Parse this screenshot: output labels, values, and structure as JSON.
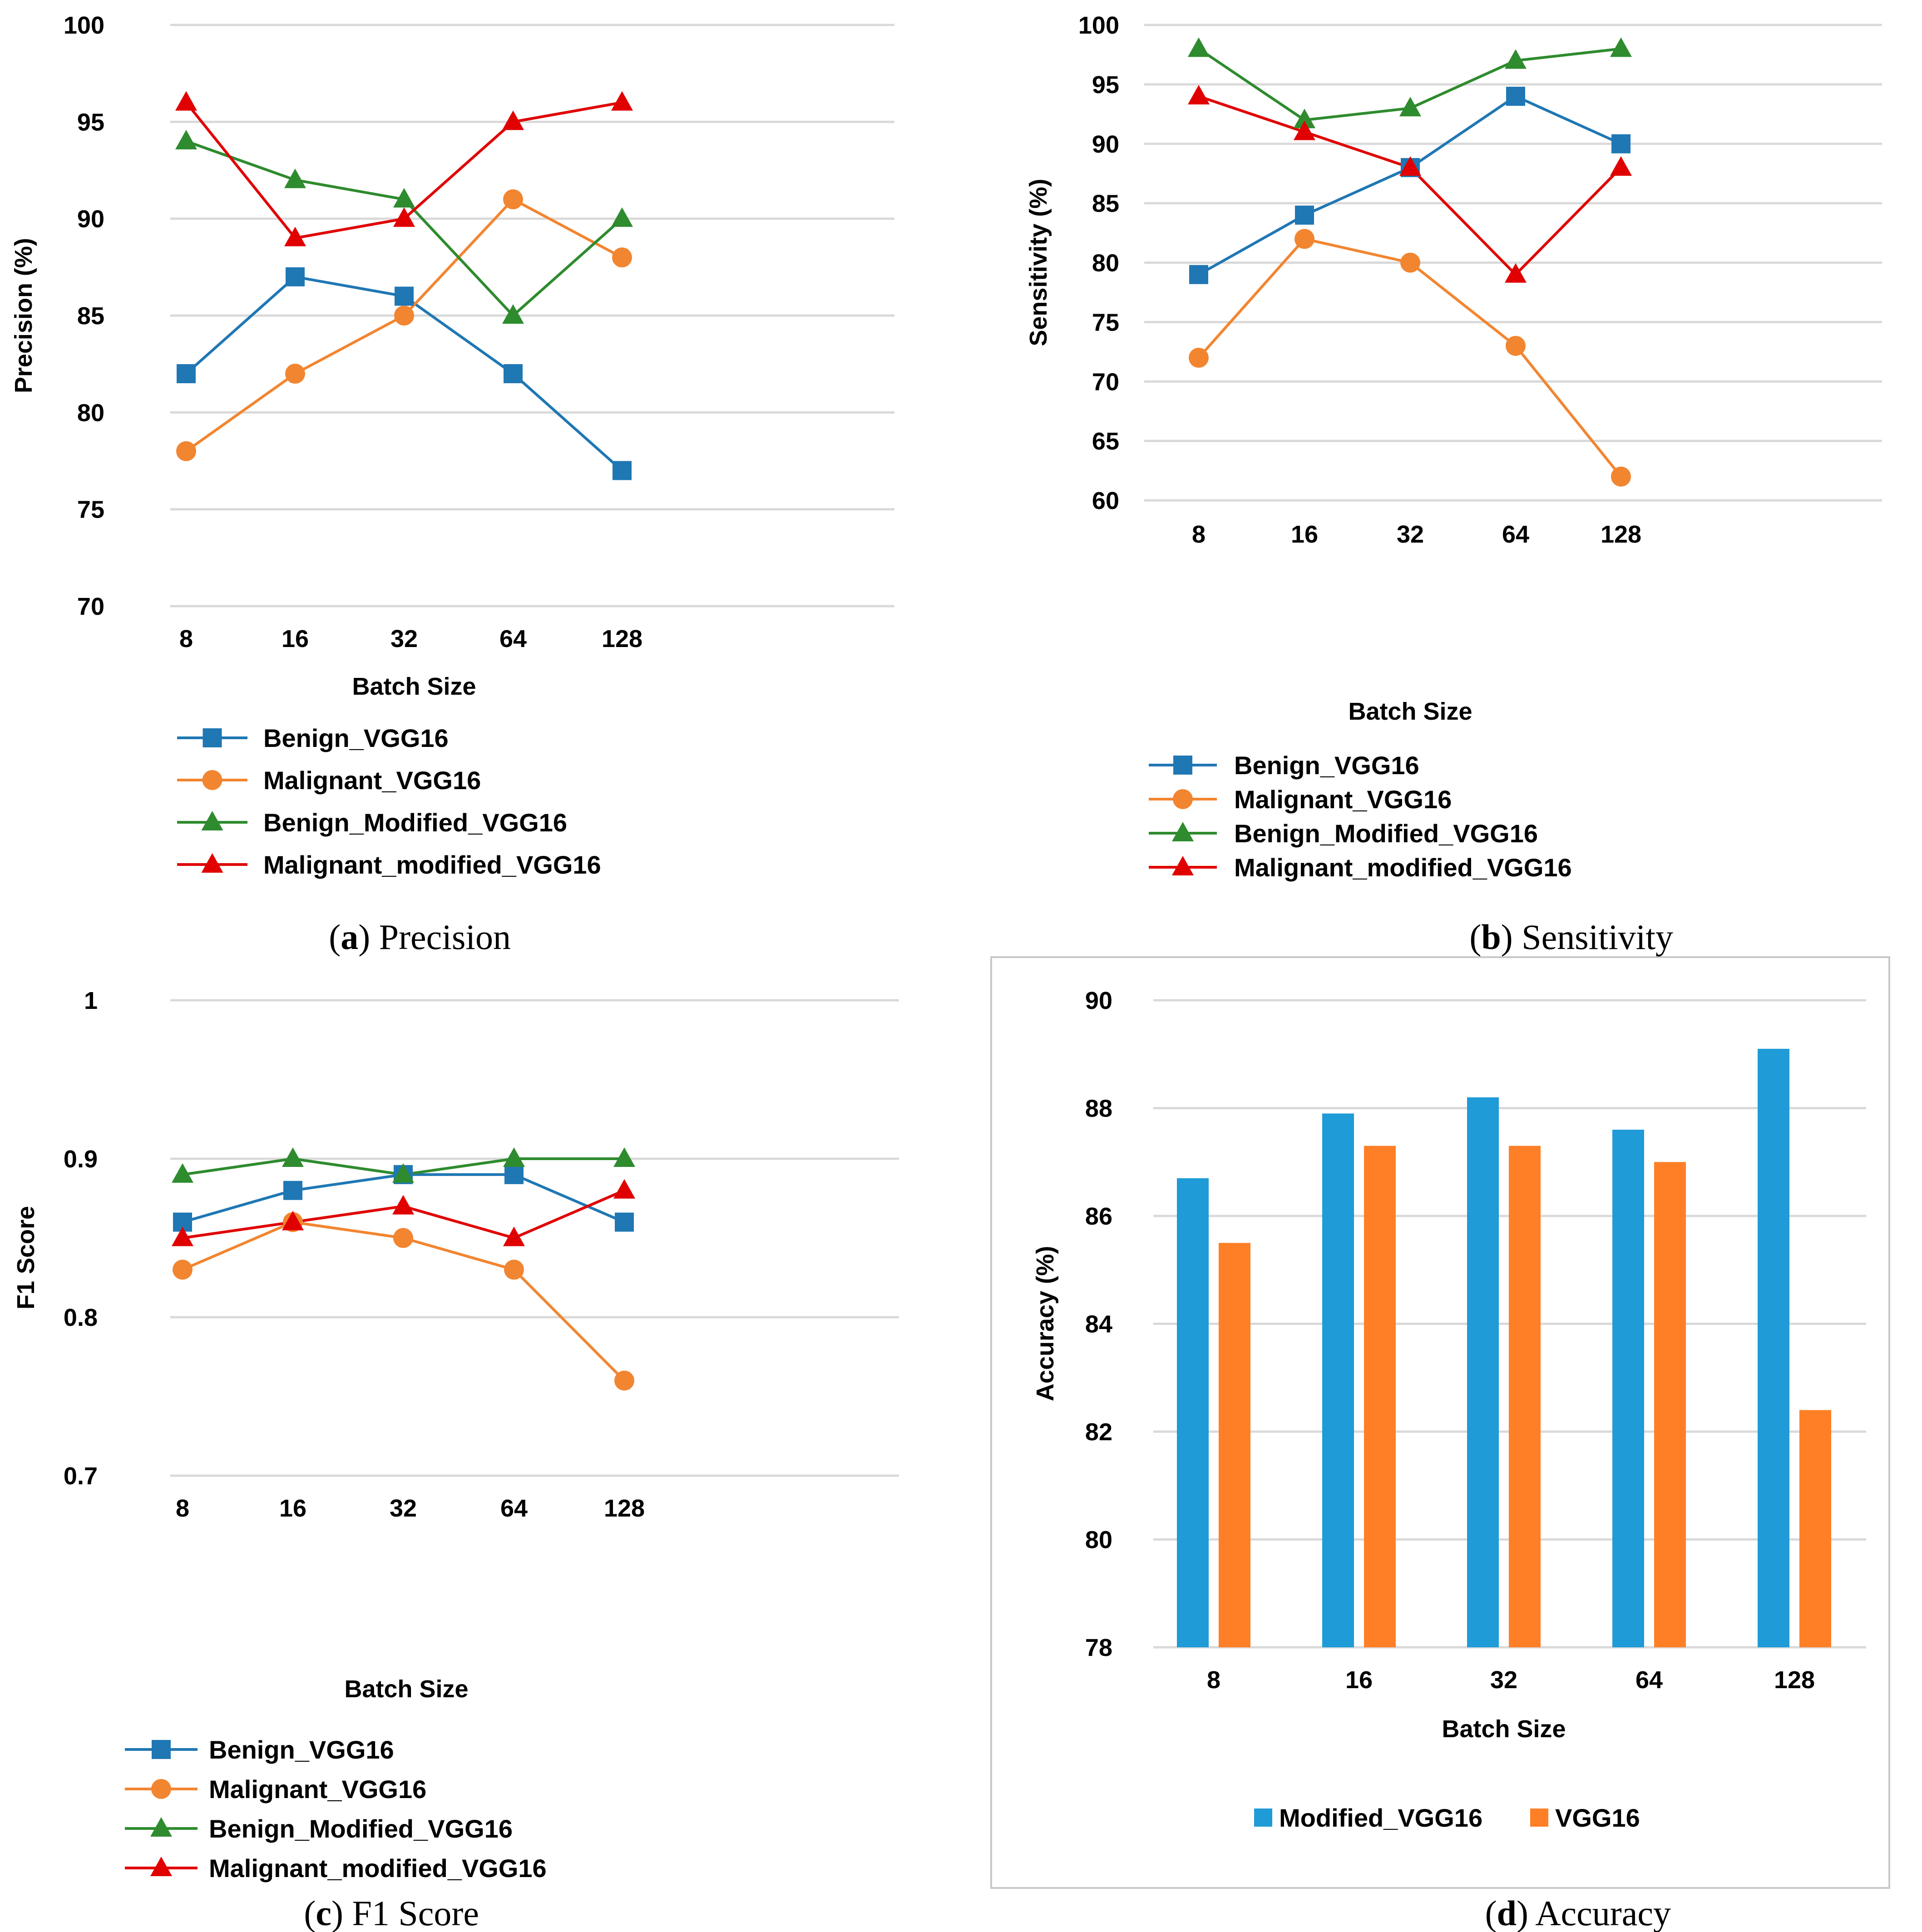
{
  "figure": {
    "colors": {
      "benign_vgg16": "#1f77b4",
      "malignant_vgg16": "#f28530",
      "benign_modified": "#2e8b2e",
      "malignant_modified": "#e00000",
      "bar_modified": "#1f9bd7",
      "bar_vgg16": "#ff7f27",
      "grid": "#d9d9d9"
    }
  },
  "chart_data": [
    {
      "id": "a",
      "type": "line",
      "caption_letter": "a",
      "caption_text": "Precision",
      "xlabel": "Batch Size",
      "ylabel": "Precision (%)",
      "categories": [
        "8",
        "16",
        "32",
        "64",
        "128"
      ],
      "ylim": [
        70,
        100
      ],
      "yticks": [
        "70",
        "75",
        "80",
        "85",
        "90",
        "95",
        "100"
      ],
      "series": [
        {
          "name": "Benign_VGG16",
          "marker": "square",
          "color": "#1f77b4",
          "values": [
            82,
            87,
            86,
            82,
            77
          ]
        },
        {
          "name": "Malignant_VGG16",
          "marker": "circle",
          "color": "#f28530",
          "values": [
            78,
            82,
            85,
            91,
            88
          ]
        },
        {
          "name": "Benign_Modified_VGG16",
          "marker": "triangle",
          "color": "#2e8b2e",
          "values": [
            94,
            92,
            91,
            85,
            90
          ]
        },
        {
          "name": "Malignant_modified_VGG16",
          "marker": "triangle",
          "color": "#e00000",
          "values": [
            96,
            89,
            90,
            95,
            96
          ]
        }
      ]
    },
    {
      "id": "b",
      "type": "line",
      "caption_letter": "b",
      "caption_text": "Sensitivity",
      "xlabel": "Batch Size",
      "ylabel": "Sensitivity (%)",
      "categories": [
        "8",
        "16",
        "32",
        "64",
        "128"
      ],
      "ylim": [
        60,
        100
      ],
      "yticks": [
        "60",
        "65",
        "70",
        "75",
        "80",
        "85",
        "90",
        "95",
        "100"
      ],
      "series": [
        {
          "name": "Benign_VGG16",
          "marker": "square",
          "color": "#1f77b4",
          "values": [
            79,
            84,
            88,
            94,
            90
          ]
        },
        {
          "name": "Malignant_VGG16",
          "marker": "circle",
          "color": "#f28530",
          "values": [
            72,
            82,
            80,
            73,
            62
          ]
        },
        {
          "name": "Benign_Modified_VGG16",
          "marker": "triangle",
          "color": "#2e8b2e",
          "values": [
            98,
            92,
            93,
            97,
            98
          ]
        },
        {
          "name": "Malignant_modified_VGG16",
          "marker": "triangle",
          "color": "#e00000",
          "values": [
            94,
            91,
            88,
            79,
            88
          ]
        }
      ]
    },
    {
      "id": "c",
      "type": "line",
      "caption_letter": "c",
      "caption_text": "F1 Score",
      "xlabel": "Batch Size",
      "ylabel": "F1 Score",
      "categories": [
        "8",
        "16",
        "32",
        "64",
        "128"
      ],
      "ylim": [
        0.7,
        1.0
      ],
      "yticks": [
        "0.7",
        "0.8",
        "0.9",
        "1"
      ],
      "series": [
        {
          "name": "Benign_VGG16",
          "marker": "square",
          "color": "#1f77b4",
          "values": [
            0.86,
            0.88,
            0.89,
            0.89,
            0.86
          ]
        },
        {
          "name": "Malignant_VGG16",
          "marker": "circle",
          "color": "#f28530",
          "values": [
            0.83,
            0.86,
            0.85,
            0.83,
            0.76
          ]
        },
        {
          "name": "Benign_Modified_VGG16",
          "marker": "triangle",
          "color": "#2e8b2e",
          "values": [
            0.89,
            0.9,
            0.89,
            0.9,
            0.9
          ]
        },
        {
          "name": "Malignant_modified_VGG16",
          "marker": "triangle",
          "color": "#e00000",
          "values": [
            0.85,
            0.86,
            0.87,
            0.85,
            0.88
          ]
        }
      ]
    },
    {
      "id": "d",
      "type": "bar",
      "caption_letter": "d",
      "caption_text": "Accuracy",
      "xlabel": "Batch Size",
      "ylabel": "Accuracy (%)",
      "categories": [
        "8",
        "16",
        "32",
        "64",
        "128"
      ],
      "ylim": [
        78,
        90
      ],
      "yticks": [
        "78",
        "80",
        "82",
        "84",
        "86",
        "88",
        "90"
      ],
      "series": [
        {
          "name": "Modified_VGG16",
          "color": "#1f9bd7",
          "values": [
            86.7,
            87.9,
            88.2,
            87.6,
            89.1
          ]
        },
        {
          "name": "VGG16",
          "color": "#ff7f27",
          "values": [
            85.5,
            87.3,
            87.3,
            87.0,
            82.4
          ]
        }
      ]
    }
  ]
}
